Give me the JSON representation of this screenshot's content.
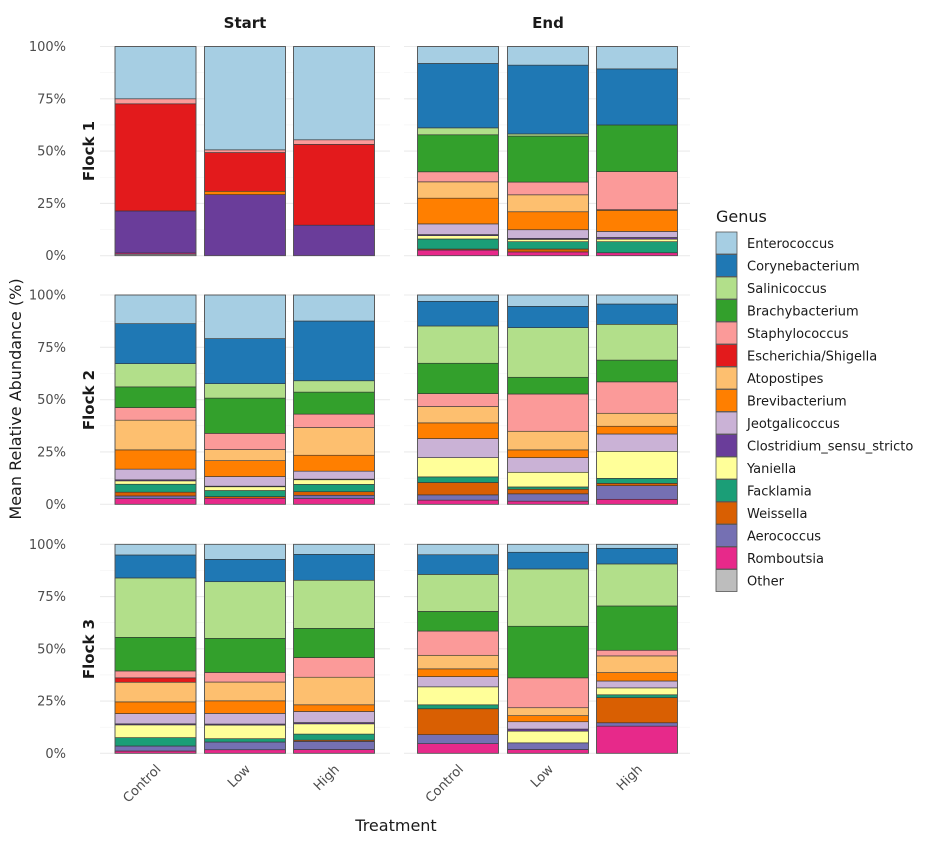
{
  "chart_data": {
    "type": "bar",
    "subtype": "stacked-percent-faceted",
    "title": "",
    "xlabel": "Treatment",
    "ylabel": "Mean Relative Abundance (%)",
    "ylim": [
      0,
      100
    ],
    "yticks": [
      "0%",
      "25%",
      "50%",
      "75%",
      "100%"
    ],
    "grid": true,
    "legend_position": "right",
    "legend_title": "Genus",
    "col_facets": [
      "Start",
      "End"
    ],
    "row_facets": [
      "Flock 1",
      "Flock 2",
      "Flock 3"
    ],
    "categories": [
      "Control",
      "Low",
      "High"
    ],
    "genera": [
      {
        "name": "Enterococcus",
        "color": "#A6CEE3"
      },
      {
        "name": "Corynebacterium",
        "color": "#1F78B4"
      },
      {
        "name": "Salinicoccus",
        "color": "#B2DF8A"
      },
      {
        "name": "Brachybacterium",
        "color": "#33A02C"
      },
      {
        "name": "Staphylococcus",
        "color": "#FB9A99"
      },
      {
        "name": "Escherichia/Shigella",
        "color": "#E31A1C"
      },
      {
        "name": "Atopostipes",
        "color": "#FDBF6F"
      },
      {
        "name": "Brevibacterium",
        "color": "#FF7F00"
      },
      {
        "name": "Jeotgalicoccus",
        "color": "#CAB2D6"
      },
      {
        "name": "Clostridium_sensu_stricto",
        "color": "#6A3D9A"
      },
      {
        "name": "Yaniella",
        "color": "#FFFF99"
      },
      {
        "name": "Facklamia",
        "color": "#1B9E77"
      },
      {
        "name": "Weissella",
        "color": "#D95F02"
      },
      {
        "name": "Aerococcus",
        "color": "#7570B3"
      },
      {
        "name": "Romboutsia",
        "color": "#E7298A"
      },
      {
        "name": "Other",
        "color": "#BDBDBD"
      }
    ],
    "panels": [
      {
        "flock": "Flock 1",
        "time": "Start",
        "bars": {
          "Control": {
            "Enterococcus": 25.0,
            "Staphylococcus": 2.4,
            "Escherichia/Shigella": 51.2,
            "Clostridium_sensu_stricto": 20.1,
            "Romboutsia": 0.6,
            "Other": 0.7
          },
          "Low": {
            "Enterococcus": 49.4,
            "Staphylococcus": 1.3,
            "Escherichia/Shigella": 18.5,
            "Clostridium_sensu_stricto": 29.2,
            "Brevibacterium": 1.6
          },
          "High": {
            "Enterococcus": 44.6,
            "Staphylococcus": 2.2,
            "Escherichia/Shigella": 38.6,
            "Clostridium_sensu_stricto": 14.6
          }
        }
      },
      {
        "flock": "Flock 1",
        "time": "End",
        "bars": {
          "Control": {
            "Enterococcus": 8.1,
            "Corynebacterium": 30.8,
            "Salinicoccus": 3.3,
            "Brachybacterium": 17.7,
            "Staphylococcus": 4.8,
            "Atopostipes": 7.8,
            "Brevibacterium": 12.3,
            "Jeotgalicoccus": 5.1,
            "Clostridium_sensu_stricto": 0.5,
            "Yaniella": 1.6,
            "Facklamia": 4.8,
            "Weissella": 0.5,
            "Romboutsia": 2.7
          },
          "Low": {
            "Enterococcus": 8.9,
            "Corynebacterium": 32.9,
            "Salinicoccus": 1.0,
            "Brachybacterium": 22.0,
            "Staphylococcus": 6.1,
            "Atopostipes": 8.1,
            "Brevibacterium": 8.6,
            "Jeotgalicoccus": 4.1,
            "Clostridium_sensu_stricto": 0.5,
            "Yaniella": 1.1,
            "Facklamia": 3.5,
            "Weissella": 1.4,
            "Romboutsia": 1.8
          },
          "High": {
            "Enterococcus": 10.7,
            "Corynebacterium": 26.8,
            "Brachybacterium": 22.3,
            "Staphylococcus": 18.2,
            "Atopostipes": 0.3,
            "Brevibacterium": 10.1,
            "Jeotgalicoccus": 2.9,
            "Clostridium_sensu_stricto": 0.8,
            "Yaniella": 1.2,
            "Facklamia": 5.3,
            "Romboutsia": 1.4
          }
        }
      },
      {
        "flock": "Flock 2",
        "time": "Start",
        "bars": {
          "Control": {
            "Enterococcus": 13.7,
            "Corynebacterium": 19.1,
            "Salinicoccus": 11.1,
            "Brachybacterium": 9.9,
            "Staphylococcus": 6.0,
            "Atopostipes": 14.2,
            "Brevibacterium": 9.2,
            "Jeotgalicoccus": 5.1,
            "Clostridium_sensu_stricto": 0.5,
            "Yaniella": 1.6,
            "Facklamia": 3.8,
            "Weissella": 1.8,
            "Aerococcus": 1.3,
            "Romboutsia": 2.7
          },
          "Low": {
            "Enterococcus": 20.9,
            "Corynebacterium": 21.6,
            "Salinicoccus": 6.9,
            "Brachybacterium": 16.9,
            "Staphylococcus": 7.8,
            "Atopostipes": 5.3,
            "Brevibacterium": 7.6,
            "Jeotgalicoccus": 4.6,
            "Clostridium_sensu_stricto": 0.3,
            "Yaniella": 1.8,
            "Facklamia": 2.9,
            "Weissella": 0.8,
            "Romboutsia": 2.9
          },
          "High": {
            "Enterococcus": 12.4,
            "Corynebacterium": 28.5,
            "Salinicoccus": 5.4,
            "Brachybacterium": 10.5,
            "Staphylococcus": 6.4,
            "Atopostipes": 13.2,
            "Brevibacterium": 7.6,
            "Jeotgalicoccus": 3.8,
            "Clostridium_sensu_stricto": 0.3,
            "Yaniella": 2.2,
            "Facklamia": 3.5,
            "Weissella": 1.7,
            "Aerococcus": 1.6,
            "Romboutsia": 2.7
          }
        }
      },
      {
        "flock": "Flock 2",
        "time": "End",
        "bars": {
          "Control": {
            "Enterococcus": 3.0,
            "Corynebacterium": 11.8,
            "Salinicoccus": 17.8,
            "Brachybacterium": 14.5,
            "Staphylococcus": 6.2,
            "Atopostipes": 7.8,
            "Brevibacterium": 7.5,
            "Jeotgalicoccus": 9.1,
            "Yaniella": 9.2,
            "Facklamia": 2.7,
            "Weissella": 5.9,
            "Aerococcus": 2.5,
            "Romboutsia": 2.0
          },
          "Low": {
            "Enterococcus": 5.4,
            "Corynebacterium": 10.2,
            "Salinicoccus": 23.7,
            "Brachybacterium": 8.0,
            "Staphylococcus": 17.8,
            "Atopostipes": 8.9,
            "Brevibacterium": 3.7,
            "Jeotgalicoccus": 7.0,
            "Yaniella": 7.0,
            "Facklamia": 1.1,
            "Weissella": 2.2,
            "Aerococcus": 3.5,
            "Romboutsia": 1.5
          },
          "High": {
            "Enterococcus": 4.3,
            "Corynebacterium": 9.7,
            "Salinicoccus": 17.1,
            "Brachybacterium": 10.4,
            "Staphylococcus": 15.0,
            "Atopostipes": 6.2,
            "Brevibacterium": 3.7,
            "Jeotgalicoccus": 8.3,
            "Yaniella": 12.9,
            "Facklamia": 2.4,
            "Weissella": 1.1,
            "Aerococcus": 6.5,
            "Romboutsia": 2.4
          }
        }
      },
      {
        "flock": "Flock 3",
        "time": "Start",
        "bars": {
          "Control": {
            "Enterococcus": 5.1,
            "Corynebacterium": 11.0,
            "Salinicoccus": 28.4,
            "Brachybacterium": 16.1,
            "Staphylococcus": 3.3,
            "Escherichia/Shigella": 2.1,
            "Atopostipes": 9.4,
            "Brevibacterium": 5.6,
            "Jeotgalicoccus": 4.9,
            "Clostridium_sensu_stricto": 0.5,
            "Yaniella": 6.1,
            "Facklamia": 4.0,
            "Aerococcus": 2.4,
            "Romboutsia": 1.1
          },
          "Low": {
            "Enterococcus": 7.2,
            "Corynebacterium": 10.7,
            "Salinicoccus": 27.1,
            "Brachybacterium": 16.3,
            "Staphylococcus": 4.6,
            "Atopostipes": 9.0,
            "Brevibacterium": 6.0,
            "Jeotgalicoccus": 5.1,
            "Clostridium_sensu_stricto": 0.5,
            "Yaniella": 6.5,
            "Facklamia": 1.6,
            "Aerococcus": 3.7,
            "Romboutsia": 1.7
          },
          "High": {
            "Enterococcus": 4.8,
            "Corynebacterium": 12.4,
            "Salinicoccus": 23.0,
            "Brachybacterium": 14.0,
            "Staphylococcus": 9.4,
            "Atopostipes": 13.2,
            "Brevibacterium": 3.2,
            "Jeotgalicoccus": 5.3,
            "Clostridium_sensu_stricto": 0.6,
            "Yaniella": 4.9,
            "Facklamia": 2.9,
            "Weissella": 0.6,
            "Aerococcus": 3.9,
            "Romboutsia": 1.8
          }
        }
      },
      {
        "flock": "Flock 3",
        "time": "End",
        "bars": {
          "Control": {
            "Enterococcus": 5.0,
            "Corynebacterium": 9.4,
            "Salinicoccus": 17.7,
            "Brachybacterium": 9.4,
            "Staphylococcus": 11.6,
            "Atopostipes": 6.5,
            "Brevibacterium": 3.7,
            "Jeotgalicoccus": 4.9,
            "Yaniella": 8.6,
            "Facklamia": 1.9,
            "Weissella": 12.4,
            "Aerococcus": 4.3,
            "Romboutsia": 4.6
          },
          "Low": {
            "Enterococcus": 3.8,
            "Corynebacterium": 8.0,
            "Salinicoccus": 27.4,
            "Brachybacterium": 24.7,
            "Staphylococcus": 14.3,
            "Atopostipes": 3.8,
            "Brevibacterium": 2.9,
            "Jeotgalicoccus": 3.5,
            "Yaniella": 5.6,
            "Clostridium_sensu_stricto": 1.0,
            "Aerococcus": 3.2,
            "Romboutsia": 1.8
          },
          "High": {
            "Enterococcus": 1.9,
            "Corynebacterium": 7.5,
            "Salinicoccus": 20.1,
            "Brachybacterium": 21.2,
            "Staphylococcus": 2.7,
            "Atopostipes": 8.0,
            "Brevibacterium": 4.0,
            "Jeotgalicoccus": 3.3,
            "Yaniella": 3.3,
            "Facklamia": 1.4,
            "Weissella": 12.0,
            "Aerococcus": 1.6,
            "Romboutsia": 13.0
          }
        }
      }
    ]
  }
}
